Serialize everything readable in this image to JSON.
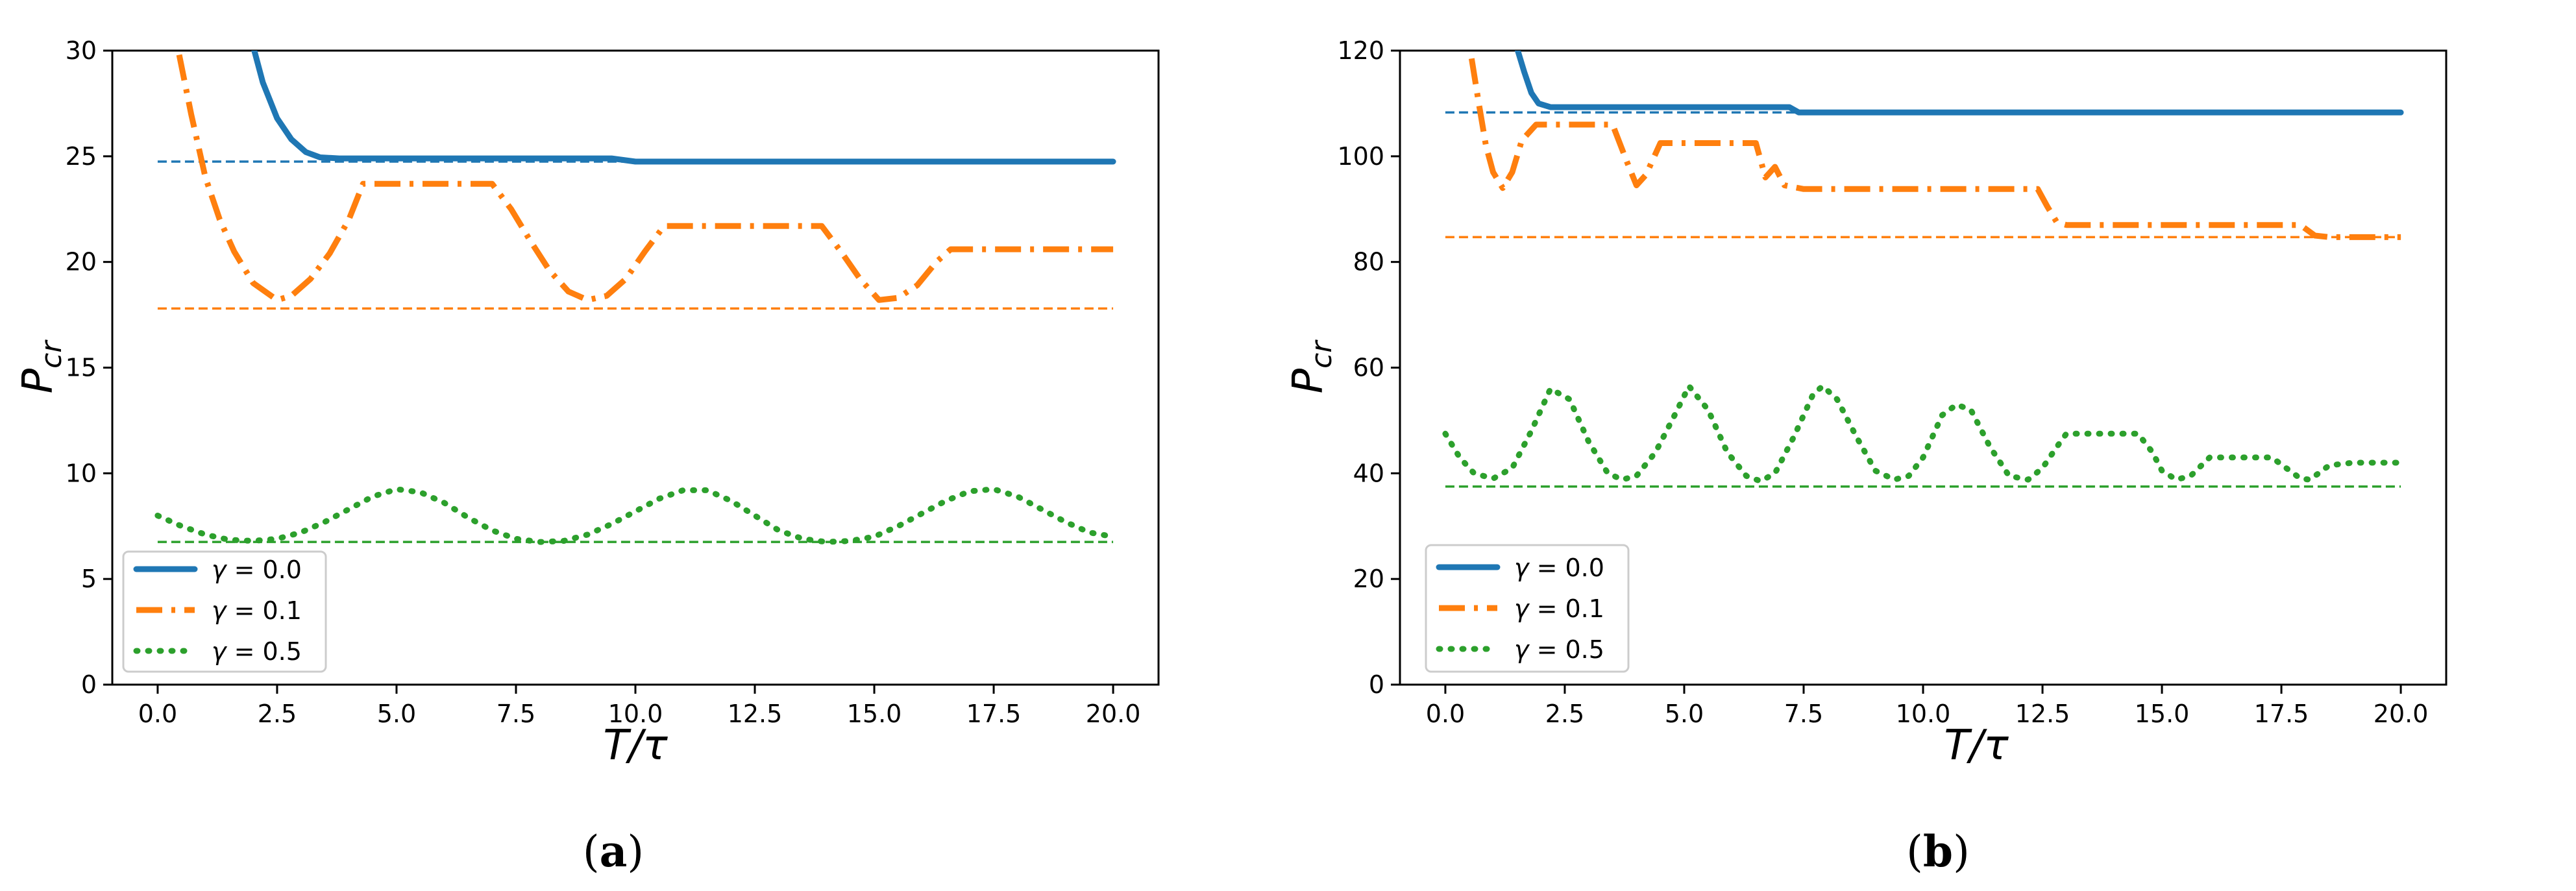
{
  "charts": [
    {
      "panel": "a",
      "caption_letter": "a",
      "chart_data": {
        "type": "line",
        "ylabel_base": "P",
        "ylabel_sub": "cr",
        "xlabel": "T/τ",
        "xlim": [
          -0.95,
          20.95
        ],
        "ylim": [
          0,
          30
        ],
        "xticks": [
          0.0,
          2.5,
          5.0,
          7.5,
          10.0,
          12.5,
          15.0,
          17.5,
          20.0
        ],
        "xtick_labels": [
          "0.0",
          "2.5",
          "5.0",
          "7.5",
          "10.0",
          "12.5",
          "15.0",
          "17.5",
          "20.0"
        ],
        "yticks": [
          0,
          5,
          10,
          15,
          20,
          25,
          30
        ],
        "ytick_labels": [
          "0",
          "5",
          "10",
          "15",
          "20",
          "25",
          "30"
        ],
        "legend_position": "lower-left",
        "series": [
          {
            "name": "γ = 0.0",
            "symbol": "γ",
            "value_text": " = 0.0",
            "color": "#1f77b4",
            "style": "solid",
            "x": [
              2.0,
              2.2,
              2.5,
              2.8,
              3.1,
              3.4,
              3.8,
              5.0,
              7.5,
              9.5,
              10.0,
              12.5,
              15.0,
              17.5,
              20.0
            ],
            "y": [
              30.2,
              28.5,
              26.8,
              25.8,
              25.2,
              24.95,
              24.9,
              24.9,
              24.9,
              24.9,
              24.75,
              24.75,
              24.75,
              24.75,
              24.75
            ]
          },
          {
            "name": "γ = 0.1",
            "symbol": "γ",
            "value_text": " = 0.1",
            "color": "#ff7f0e",
            "style": "dashdot",
            "x": [
              0.45,
              0.7,
              1.0,
              1.3,
              1.6,
              2.0,
              2.5,
              2.8,
              3.2,
              3.6,
              4.0,
              4.3,
              5.0,
              6.0,
              7.0,
              7.4,
              7.8,
              8.2,
              8.6,
              9.0,
              9.4,
              9.8,
              10.2,
              10.6,
              11.0,
              12.0,
              13.0,
              13.9,
              14.3,
              14.7,
              15.1,
              15.5,
              15.9,
              16.3,
              16.6,
              17.0,
              18.0,
              19.0,
              20.0
            ],
            "y": [
              29.8,
              27.0,
              24.0,
              22.0,
              20.5,
              19.0,
              18.2,
              18.4,
              19.2,
              20.4,
              22.0,
              23.7,
              23.7,
              23.7,
              23.7,
              22.5,
              21.0,
              19.6,
              18.6,
              18.2,
              18.4,
              19.2,
              20.5,
              21.7,
              21.7,
              21.7,
              21.7,
              21.7,
              20.5,
              19.2,
              18.2,
              18.3,
              18.9,
              20.0,
              20.6,
              20.6,
              20.6,
              20.6,
              20.6
            ]
          },
          {
            "name": "γ = 0.5",
            "symbol": "γ",
            "value_text": " = 0.5",
            "color": "#2ca02c",
            "style": "dotted",
            "x": [
              0.0,
              0.5,
              1.0,
              1.5,
              2.0,
              2.5,
              3.0,
              3.5,
              4.0,
              4.5,
              5.0,
              5.5,
              6.0,
              6.5,
              7.0,
              7.5,
              8.0,
              8.5,
              9.0,
              9.5,
              10.0,
              10.5,
              11.0,
              11.5,
              12.0,
              12.5,
              13.0,
              13.5,
              14.0,
              14.5,
              15.0,
              15.5,
              16.0,
              16.5,
              17.0,
              17.5,
              18.0,
              18.5,
              19.0,
              19.5,
              20.0
            ],
            "y": [
              8.0,
              7.5,
              7.1,
              6.85,
              6.8,
              6.9,
              7.2,
              7.7,
              8.3,
              8.9,
              9.25,
              9.1,
              8.6,
              7.9,
              7.3,
              6.9,
              6.75,
              6.8,
              7.1,
              7.6,
              8.2,
              8.8,
              9.2,
              9.2,
              8.7,
              8.0,
              7.3,
              6.9,
              6.75,
              6.8,
              7.0,
              7.5,
              8.1,
              8.7,
              9.15,
              9.25,
              8.9,
              8.3,
              7.7,
              7.2,
              7.0
            ]
          }
        ],
        "reference_lines": [
          {
            "y": 24.75,
            "color": "#1f77b4"
          },
          {
            "y": 17.8,
            "color": "#ff7f0e"
          },
          {
            "y": 6.75,
            "color": "#2ca02c"
          }
        ]
      }
    },
    {
      "panel": "b",
      "caption_letter": "b",
      "chart_data": {
        "type": "line",
        "ylabel_base": "P",
        "ylabel_sub": "cr",
        "xlabel": "T/τ",
        "xlim": [
          -0.95,
          20.95
        ],
        "ylim": [
          0,
          120
        ],
        "xticks": [
          0.0,
          2.5,
          5.0,
          7.5,
          10.0,
          12.5,
          15.0,
          17.5,
          20.0
        ],
        "xtick_labels": [
          "0.0",
          "2.5",
          "5.0",
          "7.5",
          "10.0",
          "12.5",
          "15.0",
          "17.5",
          "20.0"
        ],
        "yticks": [
          0,
          20,
          40,
          60,
          80,
          100,
          120
        ],
        "ytick_labels": [
          "0",
          "20",
          "40",
          "60",
          "80",
          "100",
          "120"
        ],
        "legend_position": "lower-left",
        "series": [
          {
            "name": "γ = 0.0",
            "symbol": "γ",
            "value_text": " = 0.0",
            "color": "#1f77b4",
            "style": "solid",
            "x": [
              1.5,
              1.65,
              1.8,
              1.95,
              2.2,
              3.0,
              5.0,
              7.2,
              7.4,
              7.6,
              10.0,
              12.5,
              15.0,
              17.5,
              20.0
            ],
            "y": [
              120.5,
              116.0,
              112.0,
              110.0,
              109.3,
              109.3,
              109.3,
              109.3,
              108.3,
              108.3,
              108.3,
              108.3,
              108.3,
              108.3,
              108.3
            ]
          },
          {
            "name": "γ = 0.1",
            "symbol": "γ",
            "value_text": " = 0.1",
            "color": "#ff7f0e",
            "style": "dashdot",
            "x": [
              0.55,
              0.7,
              0.85,
              1.0,
              1.2,
              1.4,
              1.6,
              1.9,
              2.5,
              3.0,
              3.5,
              3.8,
              4.0,
              4.2,
              4.5,
              5.0,
              6.0,
              6.5,
              6.7,
              6.9,
              7.1,
              7.5,
              9.0,
              11.0,
              12.4,
              12.6,
              12.8,
              13.0,
              14.0,
              15.0,
              16.0,
              17.0,
              17.9,
              18.2,
              18.5,
              19.0,
              20.0
            ],
            "y": [
              118.5,
              110.0,
              102.0,
              97.0,
              94.0,
              97.0,
              103.0,
              106.0,
              106.0,
              106.0,
              106.0,
              99.0,
              94.5,
              96.5,
              102.5,
              102.5,
              102.5,
              102.5,
              96.0,
              98.0,
              94.5,
              93.8,
              93.8,
              93.8,
              93.8,
              90.5,
              87.5,
              87.0,
              87.0,
              87.0,
              87.0,
              87.0,
              87.0,
              85.0,
              84.7,
              84.7,
              84.7
            ]
          },
          {
            "name": "γ = 0.5",
            "symbol": "γ",
            "value_text": " = 0.5",
            "color": "#2ca02c",
            "style": "dotted",
            "x": [
              0.0,
              0.3,
              0.6,
              1.0,
              1.4,
              1.8,
              2.2,
              2.6,
              3.0,
              3.4,
              3.7,
              4.0,
              4.4,
              4.8,
              5.1,
              5.5,
              5.9,
              6.3,
              6.6,
              6.9,
              7.3,
              7.7,
              7.9,
              8.2,
              8.6,
              9.0,
              9.4,
              9.7,
              10.0,
              10.4,
              10.7,
              11.0,
              11.4,
              11.8,
              12.2,
              12.5,
              12.8,
              13.0,
              14.0,
              14.5,
              14.8,
              15.0,
              15.3,
              15.6,
              16.0,
              17.0,
              17.3,
              17.6,
              17.9,
              18.1,
              18.5,
              19.0,
              20.0
            ],
            "y": [
              47.5,
              43.0,
              40.0,
              39.0,
              41.0,
              48.0,
              56.0,
              54.0,
              46.0,
              40.0,
              38.8,
              39.5,
              44.0,
              51.0,
              56.5,
              52.0,
              44.0,
              39.5,
              38.5,
              40.0,
              47.0,
              55.0,
              56.5,
              54.0,
              47.0,
              40.5,
              38.8,
              39.5,
              43.0,
              51.0,
              53.0,
              52.0,
              45.0,
              39.5,
              38.8,
              41.0,
              45.0,
              47.5,
              47.5,
              47.5,
              44.0,
              40.5,
              38.8,
              39.5,
              43.0,
              43.0,
              43.0,
              41.0,
              39.0,
              38.8,
              41.5,
              42.0,
              42.0
            ]
          }
        ],
        "reference_lines": [
          {
            "y": 108.3,
            "color": "#1f77b4"
          },
          {
            "y": 84.7,
            "color": "#ff7f0e"
          },
          {
            "y": 37.5,
            "color": "#2ca02c"
          }
        ]
      }
    }
  ]
}
